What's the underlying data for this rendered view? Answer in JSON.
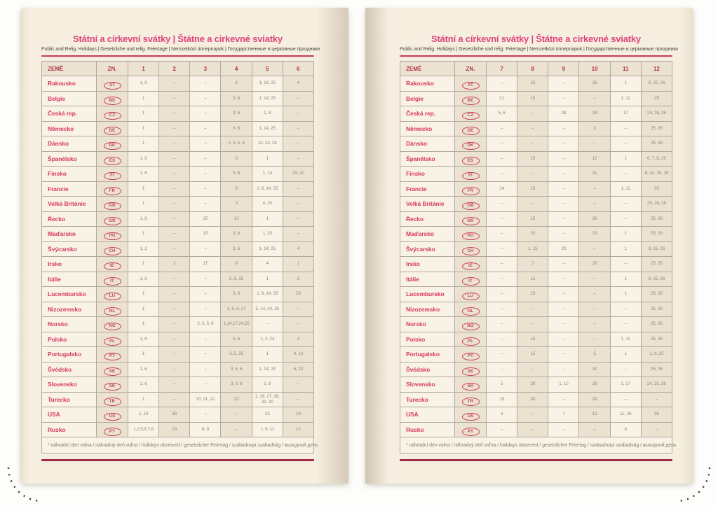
{
  "book": {
    "title": "Státní a církevní svátky | Štátne a cirkevné sviatky",
    "subtitle": "Public and Relig. Holidays | Gesetzliche und relig. Feiertage | Nemzetközi ünnepnapok | Государственные и церковные праздники",
    "footnote": "* náhradní den volna / náhradný deň voľna / holidays observed / gesetzlicher Feiertag / szabadnapi szabadság / выходной день",
    "header": {
      "country": "ZEMĚ",
      "code": "ZN."
    }
  },
  "pages": [
    {
      "side": "left",
      "months": [
        "1",
        "2",
        "3",
        "4",
        "5",
        "6"
      ],
      "rows": [
        {
          "country": "Rakousko",
          "code": "AT",
          "values": [
            "1, 6",
            "–",
            "–",
            "6",
            "1, 14, 25",
            "4"
          ]
        },
        {
          "country": "Belgie",
          "code": "BE",
          "values": [
            "1",
            "–",
            "–",
            "3, 6",
            "1, 14, 25",
            "–"
          ]
        },
        {
          "country": "Česká rep.",
          "code": "CZ",
          "values": [
            "1",
            "–",
            "–",
            "3, 6",
            "1, 8",
            "–"
          ]
        },
        {
          "country": "Německo",
          "code": "DE",
          "values": [
            "1",
            "–",
            "–",
            "3, 6",
            "1, 14, 25",
            "–"
          ]
        },
        {
          "country": "Dánsko",
          "code": "DK",
          "values": [
            "1",
            "–",
            "–",
            "2, 3, 5, 6",
            "14, 24, 25",
            "–"
          ]
        },
        {
          "country": "Španělsko",
          "code": "ES",
          "values": [
            "1, 6",
            "–",
            "–",
            "3",
            "1",
            "–"
          ]
        },
        {
          "country": "Finsko",
          "code": "FI",
          "values": [
            "1, 6",
            "–",
            "–",
            "3, 6",
            "1, 14",
            "19, 20"
          ]
        },
        {
          "country": "Francie",
          "code": "FR",
          "values": [
            "1",
            "–",
            "–",
            "6",
            "1, 8, 14, 25",
            "–"
          ]
        },
        {
          "country": "Velká Británie",
          "code": "GB",
          "values": [
            "1",
            "–",
            "–",
            "3",
            "4, 25",
            "–"
          ]
        },
        {
          "country": "Řecko",
          "code": "GR",
          "values": [
            "1, 6",
            "–",
            "25",
            "13",
            "1",
            "–"
          ]
        },
        {
          "country": "Maďarsko",
          "code": "HU",
          "values": [
            "1",
            "–",
            "15",
            "3, 6",
            "1, 25",
            "–"
          ]
        },
        {
          "country": "Švýcarsko",
          "code": "CH",
          "values": [
            "1, 2",
            "–",
            "–",
            "3, 6",
            "1, 14, 25",
            "4"
          ]
        },
        {
          "country": "Irsko",
          "code": "IE",
          "values": [
            "1",
            "2",
            "17",
            "6",
            "4",
            "1"
          ]
        },
        {
          "country": "Itálie",
          "code": "IT",
          "values": [
            "1, 6",
            "–",
            "–",
            "5, 6, 25",
            "1",
            "2"
          ]
        },
        {
          "country": "Lucembursko",
          "code": "LU",
          "values": [
            "1",
            "–",
            "–",
            "3, 6",
            "1, 9, 14, 25",
            "23"
          ]
        },
        {
          "country": "Nizozemsko",
          "code": "NL",
          "values": [
            "1",
            "–",
            "–",
            "3, 5, 6, 27",
            "5, 14, 24, 25",
            "–"
          ]
        },
        {
          "country": "Norsko",
          "code": "NO",
          "values": [
            "1",
            "–",
            "2, 3, 5, 6",
            "1,14,17,24,25",
            "–",
            "–"
          ]
        },
        {
          "country": "Polsko",
          "code": "PL",
          "values": [
            "1, 6",
            "–",
            "–",
            "5, 6",
            "1, 3, 24",
            "4"
          ]
        },
        {
          "country": "Portugalsko",
          "code": "PT",
          "values": [
            "1",
            "–",
            "–",
            "3, 5, 25",
            "1",
            "4, 10"
          ]
        },
        {
          "country": "Švédsko",
          "code": "SE",
          "values": [
            "1, 6",
            "–",
            "–",
            "3, 5, 6",
            "1, 14, 24",
            "6, 20"
          ]
        },
        {
          "country": "Slovensko",
          "code": "SK",
          "values": [
            "1, 6",
            "–",
            "–",
            "3, 5, 6",
            "1, 8",
            "–"
          ]
        },
        {
          "country": "Turecko",
          "code": "TR",
          "values": [
            "1",
            "–",
            "20, 21, 22",
            "23",
            "1, 19, 27, 28, 29, 30",
            "–"
          ]
        },
        {
          "country": "USA",
          "code": "US",
          "values": [
            "1, 19",
            "16",
            "–",
            "–",
            "25",
            "19"
          ]
        },
        {
          "country": "Rusko",
          "code": "PY",
          "values": [
            "1,2,5,6,7,8",
            "23",
            "8, 9",
            "–",
            "1, 9, 11",
            "12"
          ]
        }
      ]
    },
    {
      "side": "right",
      "months": [
        "7",
        "8",
        "9",
        "10",
        "11",
        "12"
      ],
      "rows": [
        {
          "country": "Rakousko",
          "code": "AT",
          "values": [
            "–",
            "15",
            "–",
            "26",
            "1",
            "8, 25, 26"
          ]
        },
        {
          "country": "Belgie",
          "code": "BE",
          "values": [
            "21",
            "15",
            "–",
            "–",
            "1, 11",
            "25"
          ]
        },
        {
          "country": "Česká rep.",
          "code": "CZ",
          "values": [
            "5, 6",
            "–",
            "28",
            "28",
            "17",
            "24, 25, 26"
          ]
        },
        {
          "country": "Německo",
          "code": "DE",
          "values": [
            "–",
            "–",
            "–",
            "3",
            "–",
            "25, 26"
          ]
        },
        {
          "country": "Dánsko",
          "code": "DK",
          "values": [
            "–",
            "–",
            "–",
            "–",
            "–",
            "25, 26"
          ]
        },
        {
          "country": "Španělsko",
          "code": "ES",
          "values": [
            "–",
            "15",
            "–",
            "12",
            "1",
            "6, 7, 8, 25"
          ]
        },
        {
          "country": "Finsko",
          "code": "FI",
          "values": [
            "–",
            "–",
            "–",
            "31",
            "–",
            "6, 24, 25, 26"
          ]
        },
        {
          "country": "Francie",
          "code": "FR",
          "values": [
            "14",
            "15",
            "–",
            "–",
            "1, 11",
            "25"
          ]
        },
        {
          "country": "Velká Británie",
          "code": "GB",
          "values": [
            "–",
            "–",
            "–",
            "–",
            "–",
            "25, 26, 28"
          ]
        },
        {
          "country": "Řecko",
          "code": "GR",
          "values": [
            "–",
            "15",
            "–",
            "28",
            "–",
            "25, 26"
          ]
        },
        {
          "country": "Maďarsko",
          "code": "HU",
          "values": [
            "–",
            "20",
            "–",
            "23",
            "1",
            "25, 26"
          ]
        },
        {
          "country": "Švýcarsko",
          "code": "CH",
          "values": [
            "–",
            "1, 15",
            "20",
            "–",
            "1",
            "8, 25, 26"
          ]
        },
        {
          "country": "Irsko",
          "code": "IE",
          "values": [
            "–",
            "3",
            "–",
            "26",
            "–",
            "25, 26"
          ]
        },
        {
          "country": "Itálie",
          "code": "IT",
          "values": [
            "–",
            "15",
            "–",
            "–",
            "1",
            "8, 25, 26"
          ]
        },
        {
          "country": "Lucembursko",
          "code": "LU",
          "values": [
            "–",
            "15",
            "–",
            "–",
            "1",
            "25, 26"
          ]
        },
        {
          "country": "Nizozemsko",
          "code": "NL",
          "values": [
            "–",
            "–",
            "–",
            "–",
            "–",
            "25, 26"
          ]
        },
        {
          "country": "Norsko",
          "code": "NO",
          "values": [
            "–",
            "–",
            "–",
            "–",
            "–",
            "25, 26"
          ]
        },
        {
          "country": "Polsko",
          "code": "PL",
          "values": [
            "–",
            "15",
            "–",
            "–",
            "1, 11",
            "25, 26"
          ]
        },
        {
          "country": "Portugalsko",
          "code": "PT",
          "values": [
            "–",
            "15",
            "–",
            "5",
            "1",
            "1, 8, 25"
          ]
        },
        {
          "country": "Švédsko",
          "code": "SE",
          "values": [
            "–",
            "–",
            "–",
            "31",
            "–",
            "25, 26"
          ]
        },
        {
          "country": "Slovensko",
          "code": "SK",
          "values": [
            "5",
            "29",
            "1, 15",
            "28",
            "1, 17",
            "24, 25, 26"
          ]
        },
        {
          "country": "Turecko",
          "code": "TR",
          "values": [
            "15",
            "30",
            "–",
            "29",
            "–",
            "–"
          ]
        },
        {
          "country": "USA",
          "code": "US",
          "values": [
            "3",
            "–",
            "7",
            "12",
            "11, 26",
            "25"
          ]
        },
        {
          "country": "Rusko",
          "code": "PY",
          "values": [
            "–",
            "–",
            "–",
            "–",
            "4",
            "–"
          ]
        }
      ]
    }
  ],
  "colors": {
    "title_pink": "#e0457a",
    "country_red": "#d83a62",
    "header_crimson": "#b5314e",
    "rule_crimson": "#b02a4c",
    "value_gray": "#8f887c",
    "paper": "#f6efe0",
    "cell_shade": "#ece2d2",
    "cell_light": "#f8f3e6",
    "table_border": "#b3a99a",
    "corner_dots": "#35302a"
  }
}
